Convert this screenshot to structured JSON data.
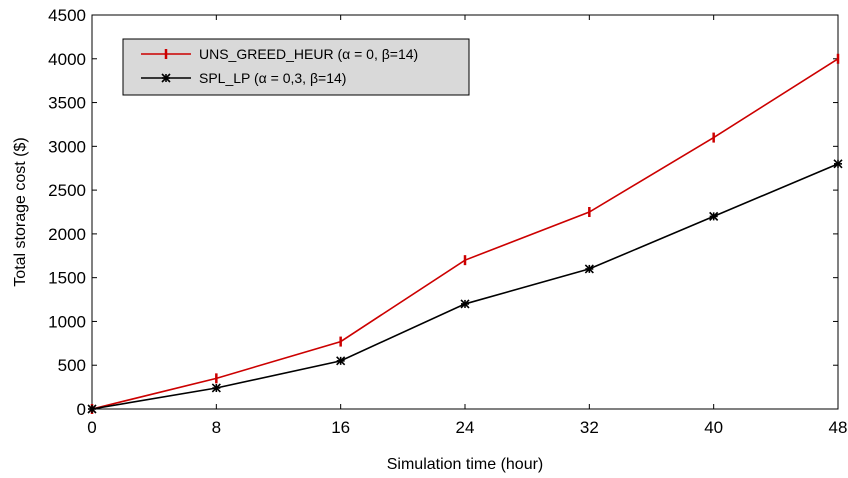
{
  "chart_data": {
    "type": "line",
    "title": "",
    "xlabel": "Simulation time (hour)",
    "ylabel": "Total storage cost ($)",
    "x": [
      0,
      8,
      16,
      24,
      32,
      40,
      48
    ],
    "xlim": [
      0,
      48
    ],
    "ylim": [
      0,
      4500
    ],
    "xticks": [
      "0",
      "8",
      "16",
      "24",
      "32",
      "40",
      "48"
    ],
    "yticks": [
      "0",
      "500",
      "1000",
      "1500",
      "2000",
      "2500",
      "3000",
      "3500",
      "4000",
      "4500"
    ],
    "xtick_values": [
      0,
      8,
      16,
      24,
      32,
      40,
      48
    ],
    "ytick_values": [
      0,
      500,
      1000,
      1500,
      2000,
      2500,
      3000,
      3500,
      4000,
      4500
    ],
    "grid": false,
    "legend_position": "top-left",
    "series": [
      {
        "name": "UNS_GREED_HEUR (α = 0, β=14)",
        "color": "#cc0000",
        "marker": "vertical-bar",
        "values": [
          0,
          350,
          770,
          1700,
          2250,
          3100,
          4000
        ]
      },
      {
        "name": "SPL_LP (α = 0,3, β=14)",
        "color": "#000000",
        "marker": "asterisk",
        "values": [
          0,
          240,
          550,
          1200,
          1600,
          2200,
          2800
        ]
      }
    ]
  }
}
